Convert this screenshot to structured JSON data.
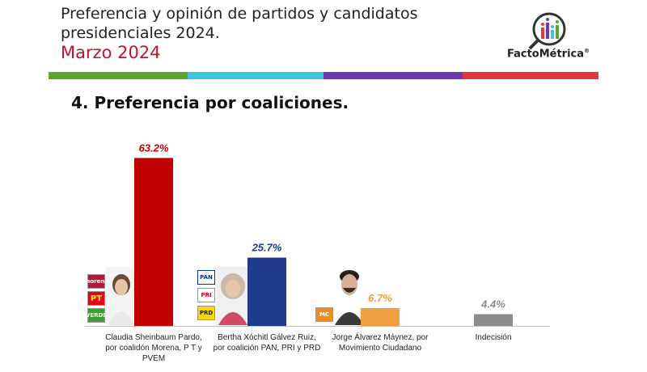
{
  "header": {
    "title_line1": "Preferencia y opinión de partidos y candidatos",
    "title_line2": "presidenciales 2024.",
    "subtitle": "Marzo 2024",
    "logo_text": "FactoMétrica",
    "logo_mark": "®"
  },
  "stripe_colors": [
    "#5aa532",
    "#3ec3dc",
    "#6f38b5",
    "#e0383a"
  ],
  "section_title": "4. Preferencia por coaliciones.",
  "chart_data": {
    "type": "bar",
    "categories": [
      "Claudia Sheinbaum Pardo, por coalidón Morena, PT y PVEM",
      "Bertha Xóchitl Gálvez Ruiz, por coalición PAN, PRI y PRD",
      "Jorge Álvarez Máynez, por Movimiento Ciudadano",
      "Indecisión"
    ],
    "category_lines": [
      [
        "Claudia Sheinbaum Pardo,",
        "por coalidón Morena, P T y",
        "PVEM"
      ],
      [
        "Bertha Xóchitl Gálvez Ruiz,",
        "por coalición PAN, PRI y PRD"
      ],
      [
        "Jorge Álvarez Máynez, por",
        "Movimiento Ciudadano"
      ],
      [
        "Indecisión"
      ]
    ],
    "values": [
      63.2,
      25.7,
      6.7,
      4.4
    ],
    "value_labels": [
      "63.2%",
      "25.7%",
      "6.7%",
      "4.4%"
    ],
    "colors": [
      "#c00000",
      "#1f3b8c",
      "#f0a040",
      "#8c8c8c"
    ],
    "label_colors": [
      "#c00000",
      "#1f3b8c",
      "#f0a040",
      "#8c8c8c"
    ],
    "ylim": [
      0,
      70
    ],
    "grid": false
  },
  "party_badges": {
    "coalition1": [
      "morena",
      "PT",
      "VERDE"
    ],
    "coalition2": [
      "PAN",
      "PRI",
      "PRD"
    ],
    "coalition3": [
      "MC"
    ]
  }
}
